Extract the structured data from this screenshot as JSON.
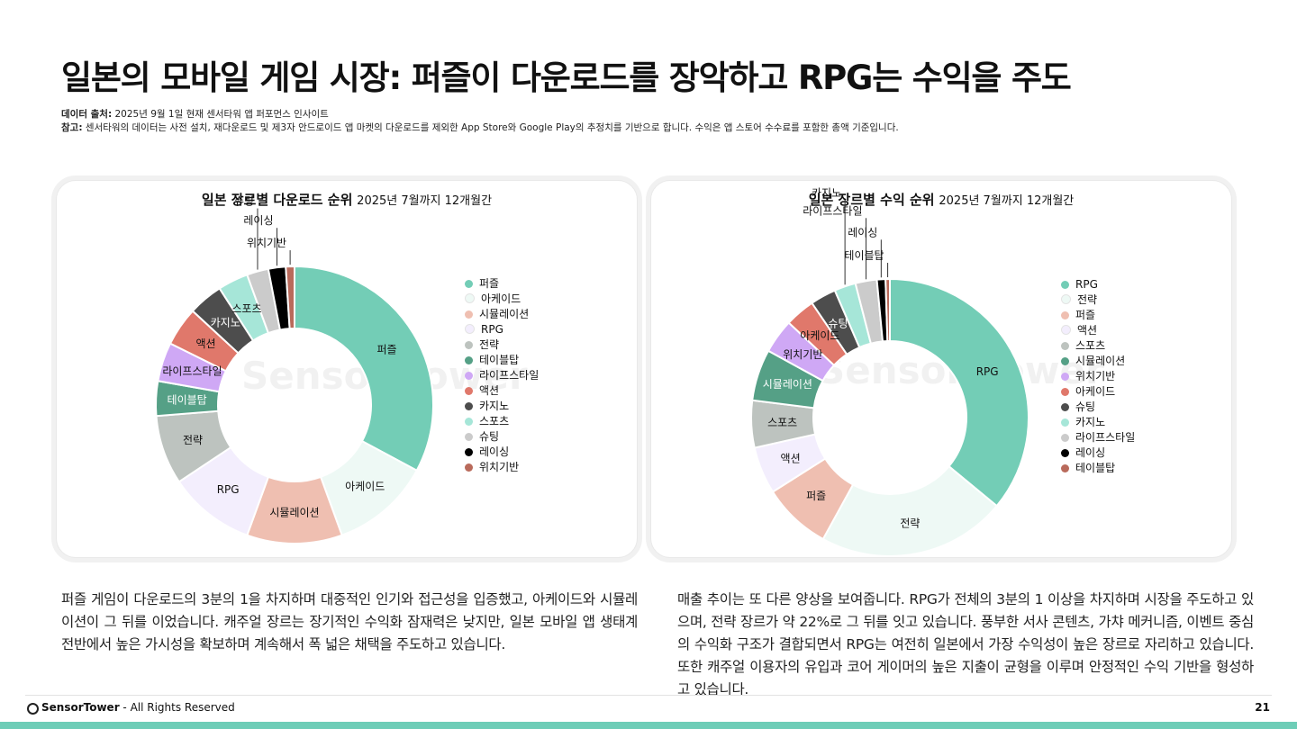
{
  "title": "일본의 모바일 게임 시장: 퍼즐이 다운로드를 장악하고 RPG는 수익을 주도",
  "notes": {
    "source_label": "데이터 출처:",
    "source_text": " 2025년 9월 1일 현재 센서타워 앱 퍼포먼스 인사이트",
    "note_label": "참고:",
    "note_text": " 센서타워의 데이터는 사전 설치, 재다운로드 및 제3자 안드로이드 앱 마켓의 다운로드를 제외한 App Store와 Google Play의 추정치를 기반으로 합니다. 수익은 앱 스토어 수수료를 포함한 총액 기준입니다."
  },
  "watermark": "Sensor Tower",
  "chart_data": [
    {
      "type": "pie",
      "donut": true,
      "title": "일본 장르별 다운로드 순위",
      "subtitle": "2025년 7월까지 12개월간",
      "legend_position": "right",
      "categories": [
        "퍼즐",
        "아케이드",
        "시뮬레이션",
        "RPG",
        "전략",
        "테이블탑",
        "라이프스타일",
        "액션",
        "카지노",
        "스포츠",
        "슈팅",
        "레이싱",
        "위치기반"
      ],
      "values": [
        32.5,
        11.5,
        11,
        10,
        8,
        4,
        4.5,
        4.5,
        4,
        3.5,
        2.5,
        2,
        1
      ],
      "colors": [
        "#73cdb6",
        "#eef9f5",
        "#efbfb1",
        "#f3eefd",
        "#bdc3bf",
        "#55a086",
        "#cfa8f5",
        "#e0786b",
        "#4d4d4d",
        "#a6e6d8",
        "#cbcbcb",
        "#000000",
        "#b96a5b"
      ],
      "slice_labels": [
        "퍼즐",
        "아케이드",
        "시뮬레이션",
        "RPG",
        "전략",
        "테이블탑",
        "라이프스타일",
        "액션",
        "카지노",
        "스포츠",
        "슈팅",
        "레이싱",
        "위치기반"
      ]
    },
    {
      "type": "pie",
      "donut": true,
      "title": "일본 장르별 수익 순위",
      "subtitle": "2025년 7월까지 12개월간",
      "legend_position": "right",
      "categories": [
        "RPG",
        "전략",
        "퍼즐",
        "액션",
        "스포츠",
        "시뮬레이션",
        "위치기반",
        "아케이드",
        "슈팅",
        "카지노",
        "라이프스타일",
        "레이싱",
        "테이블탑"
      ],
      "values": [
        36,
        22,
        8,
        5.5,
        5.5,
        6,
        4,
        3.5,
        3,
        2.5,
        2.5,
        1,
        0.5
      ],
      "colors": [
        "#73cdb6",
        "#eef9f5",
        "#efbfb1",
        "#f3eefd",
        "#bdc3bf",
        "#55a086",
        "#cfa8f5",
        "#e0786b",
        "#4d4d4d",
        "#a6e6d8",
        "#cbcbcb",
        "#000000",
        "#b96a5b"
      ],
      "slice_labels": [
        "RPG",
        "전략",
        "퍼즐",
        "액션",
        "스포츠",
        "시뮬레이션",
        "위치기반",
        "아케이드",
        "슈팅",
        "카지노",
        "라이프스타일",
        "레이싱",
        "테이블탑"
      ]
    }
  ],
  "paragraphs": {
    "left": "퍼즐 게임이 다운로드의 3분의 1을 차지하며 대중적인 인기와 접근성을 입증했고, 아케이드와 시뮬레이션이 그 뒤를 이었습니다. 캐주얼 장르는 장기적인 수익화 잠재력은 낮지만, 일본 모바일 앱 생태계 전반에서 높은 가시성을 확보하며 계속해서 폭 넓은 채택을 주도하고 있습니다.",
    "right": "매출 추이는 또 다른 양상을 보여줍니다. RPG가 전체의 3분의 1 이상을 차지하며 시장을 주도하고 있으며, 전략 장르가 약 22%로 그 뒤를 잇고 있습니다. 풍부한 서사 콘텐츠, 가챠 메커니즘, 이벤트 중심의 수익화 구조가 결합되면서 RPG는 여전히 일본에서 가장 수익성이 높은 장르로 자리하고 있습니다. 또한 캐주얼 이용자의 유입과 코어 게이머의 높은 지출이 균형을 이루며 안정적인 수익 기반을 형성하고 있습니다."
  },
  "footer": {
    "brand": "SensorTower",
    "rights": " - All Rights Reserved",
    "page": "21"
  }
}
